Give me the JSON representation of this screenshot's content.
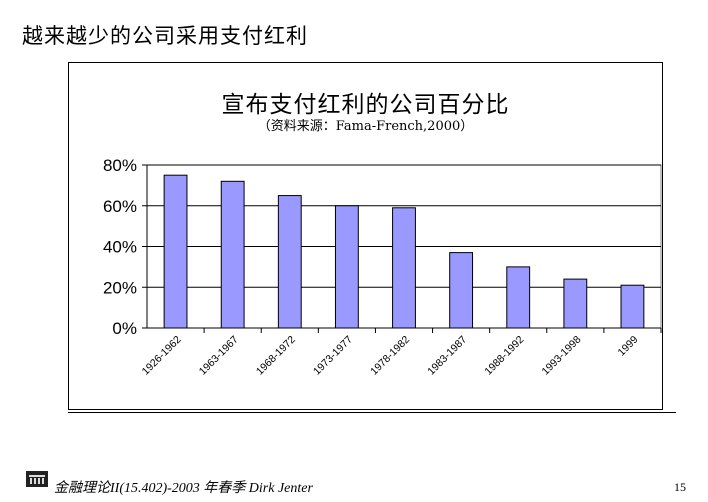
{
  "slide": {
    "title": "越来越少的公司采用支付红利",
    "footer": "金融理论II(15.402)-2003 年春季 Dirk Jenter",
    "page_number": "15"
  },
  "chart_data": {
    "type": "bar",
    "title": "宣布支付红利的公司百分比",
    "subtitle": "（资料来源：Fama-French,2000）",
    "categories": [
      "1926-1962",
      "1963-1967",
      "1968-1972",
      "1973-1977",
      "1978-1982",
      "1983-1987",
      "1988-1992",
      "1993-1998",
      "1999"
    ],
    "values": [
      75,
      72,
      65,
      60,
      59,
      37,
      30,
      24,
      21
    ],
    "y_ticks": [
      "0%",
      "20%",
      "40%",
      "60%",
      "80%"
    ],
    "ylim": [
      0,
      80
    ],
    "bar_color": "#9999ff",
    "plot_bg": "#ffffff",
    "grid": true
  }
}
